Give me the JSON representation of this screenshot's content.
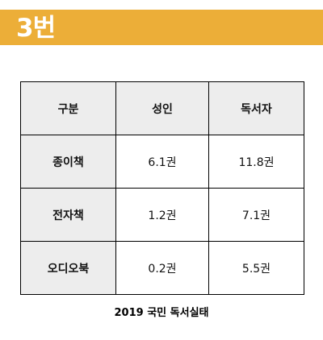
{
  "header": {
    "title": "3번",
    "color": "#ECAE38"
  },
  "table": {
    "columns": [
      "구분",
      "성인",
      "독서자"
    ],
    "rows": [
      {
        "label": "종이책",
        "values": [
          "6.1권",
          "11.8권"
        ]
      },
      {
        "label": "전자책",
        "values": [
          "1.2권",
          "7.1권"
        ]
      },
      {
        "label": "오디오북",
        "values": [
          "0.2권",
          "5.5권"
        ]
      }
    ],
    "header_bg": "#EDEDED"
  },
  "caption": "2019 국민 독서실태"
}
